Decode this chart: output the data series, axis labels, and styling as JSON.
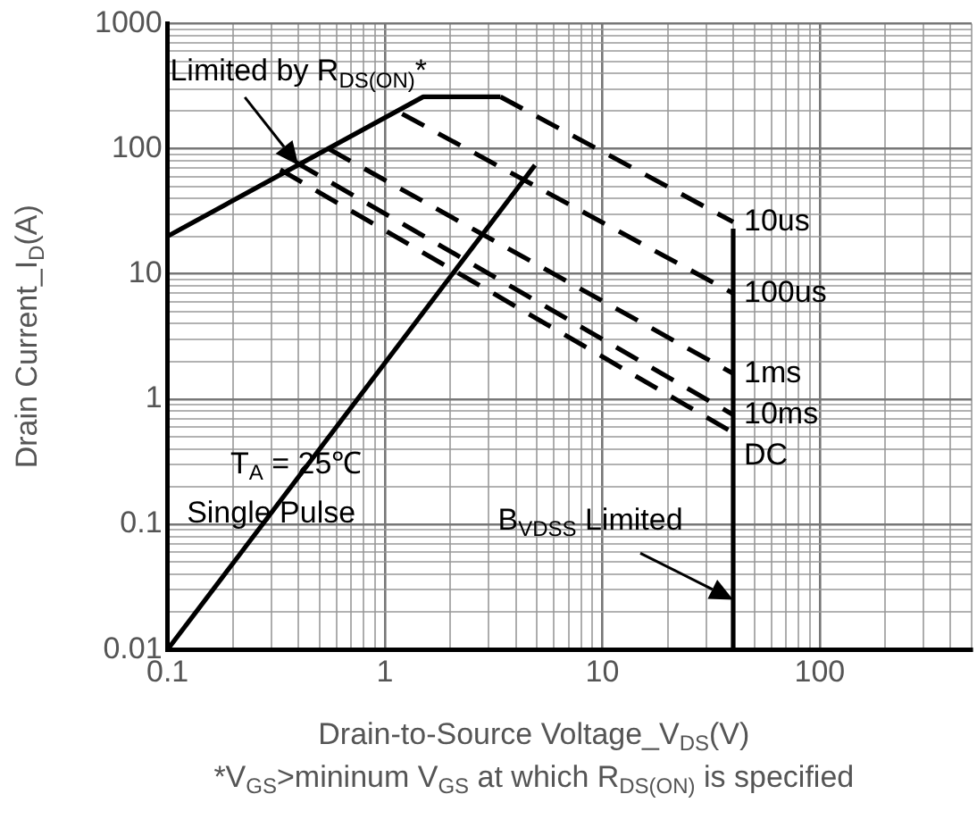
{
  "chart_data": {
    "type": "line",
    "xlabel": "Drain-to-Source Voltage_V$_{DS}$(V)",
    "ylabel": "Drain Current_I$_{D}$(A)",
    "log": "xy",
    "grid": true,
    "marker": "none",
    "xlim": [
      0.1,
      500
    ],
    "ylim": [
      0.01,
      1000
    ],
    "xticks": [
      0.1,
      {
        "value": 0.2,
        "label": null
      },
      {
        "value": 0.3,
        "label": null
      },
      {
        "value": 0.4,
        "label": null
      },
      {
        "value": 0.5,
        "label": null
      },
      {
        "value": 0.6,
        "label": null
      },
      {
        "value": 0.7,
        "label": null
      },
      {
        "value": 0.8,
        "label": null
      },
      {
        "value": 0.9,
        "label": null
      },
      1,
      {
        "value": 2,
        "label": null
      },
      {
        "value": 3,
        "label": null
      },
      {
        "value": 4,
        "label": null
      },
      {
        "value": 5,
        "label": null
      },
      {
        "value": 6,
        "label": null
      },
      {
        "value": 7,
        "label": null
      },
      {
        "value": 8,
        "label": null
      },
      {
        "value": 9,
        "label": null
      },
      10,
      {
        "value": 20,
        "label": null
      },
      {
        "value": 30,
        "label": null
      },
      {
        "value": 40,
        "label": null
      },
      {
        "value": 50,
        "label": null
      },
      {
        "value": 60,
        "label": null
      },
      {
        "value": 70,
        "label": null
      },
      {
        "value": 80,
        "label": null
      },
      {
        "value": 90,
        "label": null
      },
      100,
      {
        "value": 200,
        "label": null
      },
      {
        "value": 300,
        "label": null
      },
      {
        "value": 400,
        "label": null
      },
      {
        "value": 500,
        "label": null
      }
    ],
    "yticks": [
      0.01,
      {
        "value": 0.02,
        "label": null
      },
      {
        "value": 0.03,
        "label": null
      },
      {
        "value": 0.04,
        "label": null
      },
      {
        "value": 0.05,
        "label": null
      },
      {
        "value": 0.06,
        "label": null
      },
      {
        "value": 0.07,
        "label": null
      },
      {
        "value": 0.08,
        "label": null
      },
      {
        "value": 0.09,
        "label": null
      },
      0.1,
      {
        "value": 0.2,
        "label": null
      },
      {
        "value": 0.3,
        "label": null
      },
      {
        "value": 0.4,
        "label": null
      },
      {
        "value": 0.5,
        "label": null
      },
      {
        "value": 0.6,
        "label": null
      },
      {
        "value": 0.7,
        "label": null
      },
      {
        "value": 0.8,
        "label": null
      },
      {
        "value": 0.9,
        "label": null
      },
      1,
      {
        "value": 2,
        "label": null
      },
      {
        "value": 3,
        "label": null
      },
      {
        "value": 4,
        "label": null
      },
      {
        "value": 5,
        "label": null
      },
      {
        "value": 6,
        "label": null
      },
      {
        "value": 7,
        "label": null
      },
      {
        "value": 8,
        "label": null
      },
      {
        "value": 9,
        "label": null
      },
      10,
      {
        "value": 20,
        "label": null
      },
      {
        "value": 30,
        "label": null
      },
      {
        "value": 40,
        "label": null
      },
      {
        "value": 50,
        "label": null
      },
      {
        "value": 60,
        "label": null
      },
      {
        "value": 70,
        "label": null
      },
      {
        "value": 80,
        "label": null
      },
      {
        "value": 90,
        "label": null
      },
      100,
      {
        "value": 200,
        "label": null
      },
      {
        "value": 300,
        "label": null
      },
      {
        "value": 400,
        "label": null
      },
      {
        "value": 500,
        "label": null
      },
      {
        "value": 600,
        "label": null
      },
      {
        "value": 700,
        "label": null
      },
      {
        "value": 800,
        "label": null
      },
      {
        "value": 900,
        "label": null
      },
      1000
    ],
    "series": [
      {
        "color": "#000000",
        "line_style": "solid",
        "x": [
          0.1,
          1.5,
          3.4
        ],
        "values": [
          20,
          260,
          260
        ]
      },
      {
        "name": "10us",
        "color": "#000000",
        "line_style": "dashed",
        "x": [
          3.4,
          40
        ],
        "values": [
          260,
          26
        ]
      },
      {
        "name": "100us",
        "color": "#000000",
        "line_style": "dashed",
        "x": [
          1.2,
          40
        ],
        "values": [
          190,
          7
        ]
      },
      {
        "name": "1ms",
        "color": "#000000",
        "line_style": "dashed",
        "x": [
          0.55,
          40
        ],
        "values": [
          100,
          1.6
        ]
      },
      {
        "name": "10ms",
        "color": "#000000",
        "line_style": "dashed",
        "x": [
          0.39,
          40
        ],
        "values": [
          78,
          0.75
        ]
      },
      {
        "name": "DC",
        "color": "#000000",
        "line_style": "dashed",
        "x": [
          0.33,
          40
        ],
        "values": [
          68,
          0.54
        ]
      },
      {
        "color": "#000000",
        "line_style": "solid",
        "x": [
          0.1,
          4.9
        ],
        "values": [
          0.01,
          74
        ]
      },
      {
        "color": "#000000",
        "line_style": "solid",
        "x": [
          40,
          40
        ],
        "values": [
          0.01,
          23
        ]
      }
    ],
    "annotations": [
      {
        "text": "Limited by R$_{DS(ON)}$*",
        "x": 0.4,
        "y": 74
      },
      "T$_{A}$ = 25℃",
      "Single Pulse",
      {
        "text": "B$_{VDSS}$ Limited",
        "x": 40,
        "y": 0.025
      },
      "*V$_{GS}$>mininum V$_{GS}$ at which R$_{DS(ON)}$ is specified"
    ]
  }
}
